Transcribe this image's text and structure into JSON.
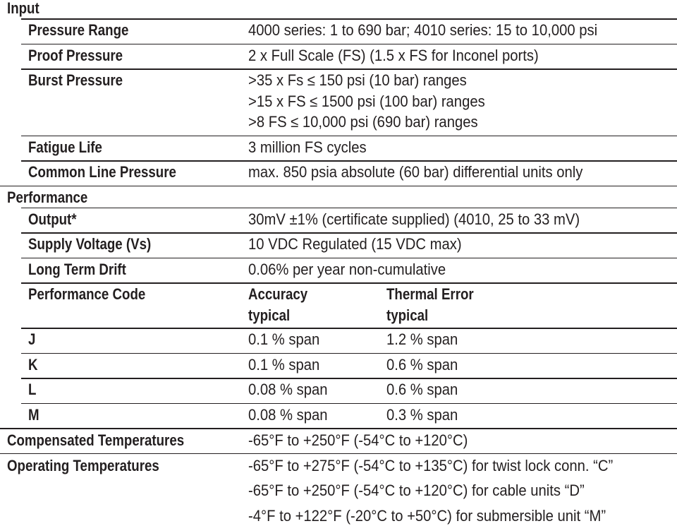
{
  "input": {
    "title": "Input",
    "rows": [
      {
        "label": "Pressure Range",
        "lines": [
          "4000 series: 1 to 690 bar; 4010 series: 15 to 10,000 psi"
        ]
      },
      {
        "label": "Proof Pressure",
        "lines": [
          "2 x Full Scale (FS) (1.5 x FS for Inconel ports)"
        ]
      },
      {
        "label": "Burst Pressure",
        "lines": [
          ">35 x Fs ≤ 150 psi (10 bar) ranges",
          ">15 x FS ≤ 1500 psi (100 bar) ranges",
          ">8 FS ≤ 10,000 psi (690 bar) ranges"
        ]
      },
      {
        "label": "Fatigue Life",
        "lines": [
          "3 million FS cycles"
        ]
      },
      {
        "label": "Common Line Pressure",
        "lines": [
          "max. 850 psia absolute (60 bar) differential units only"
        ]
      }
    ]
  },
  "performance": {
    "title": "Performance",
    "rows": [
      {
        "label": "Output*",
        "lines": [
          "30mV ±1% (certificate supplied) (4010, 25 to 33 mV)"
        ]
      },
      {
        "label": "Supply Voltage (Vs)",
        "lines": [
          "10 VDC Regulated (15 VDC max)"
        ]
      },
      {
        "label": "Long Term Drift",
        "lines": [
          "0.06% per year non-cumulative"
        ]
      }
    ],
    "code_table": {
      "label": "Performance Code",
      "columns": [
        [
          "Accuracy",
          "typical"
        ],
        [
          "Thermal Error",
          "typical"
        ]
      ],
      "rows": [
        [
          "J",
          "0.1 % span",
          "1.2 % span"
        ],
        [
          "K",
          "0.1 % span",
          "0.6 % span"
        ],
        [
          "L",
          "0.08 % span",
          "0.6 % span"
        ],
        [
          "M",
          "0.08 % span",
          "0.3 % span"
        ]
      ]
    }
  },
  "temperatures": [
    {
      "label": "Compensated Temperatures",
      "lines": [
        "-65°F to +250°F (-54°C to +120°C)"
      ]
    },
    {
      "label": "Operating Temperatures",
      "lines": [
        "-65°F to +275°F (-54°C to +135°C) for twist lock conn. “C”",
        "-65°F to +250°F (-54°C to +120°C) for cable units “D”",
        "-4°F to +122°F (-20°C to +50°C) for submersible unit “M”"
      ]
    }
  ]
}
